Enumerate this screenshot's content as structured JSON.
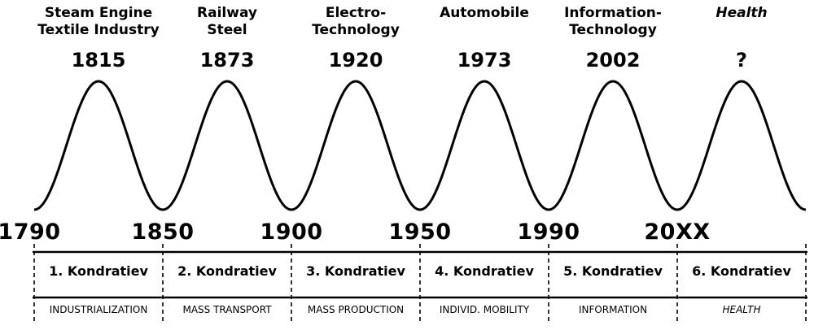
{
  "waves": [
    {
      "technology": "Steam Engine\nTextile Industry",
      "peak_year": "1815",
      "start_year": "1790",
      "name": "1. Kondratiev",
      "theme": "INDUSTRIALIZATION"
    },
    {
      "technology": "Railway\nSteel",
      "peak_year": "1873",
      "start_year": "1850",
      "name": "2. Kondratiev",
      "theme": "MASS TRANSPORT"
    },
    {
      "technology": "Electro-\nTechnology",
      "peak_year": "1920",
      "start_year": "1900",
      "name": "3. Kondratiev",
      "theme": "MASS PRODUCTION"
    },
    {
      "technology": "Automobile",
      "peak_year": "1973",
      "start_year": "1950",
      "name": "4. Kondratiev",
      "theme": "INDIVID. MOBILITY"
    },
    {
      "technology": "Information-\nTechnology",
      "peak_year": "2002",
      "start_year": "1990",
      "name": "5. Kondratiev",
      "theme": "INFORMATION"
    },
    {
      "technology": "Health",
      "peak_year": "?",
      "start_year": "20XX",
      "name": "6. Kondratiev",
      "theme": "HEALTH"
    }
  ]
}
